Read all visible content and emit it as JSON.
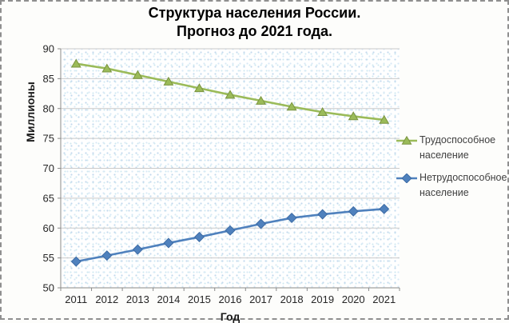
{
  "chart_data": {
    "type": "line",
    "title": "Структура населения России. Прогноз до 2021 года.",
    "title_lines": [
      "Структура населения России.",
      "Прогноз до 2021 года."
    ],
    "xlabel": "Год",
    "ylabel": "Миллионы",
    "categories": [
      "2011",
      "2012",
      "2013",
      "2014",
      "2015",
      "2016",
      "2017",
      "2018",
      "2019",
      "2020",
      "2021"
    ],
    "series": [
      {
        "name": "Трудоспособное население",
        "marker": "triangle",
        "color": "#9BBB59",
        "marker_border": "#7A9440",
        "values": [
          87.5,
          86.7,
          85.6,
          84.5,
          83.4,
          82.3,
          81.3,
          80.3,
          79.4,
          78.7,
          78.1
        ]
      },
      {
        "name": "Нетрудоспособное население",
        "marker": "diamond",
        "color": "#4F81BD",
        "marker_border": "#3C6BA5",
        "values": [
          54.4,
          55.4,
          56.4,
          57.5,
          58.5,
          59.6,
          60.7,
          61.7,
          62.3,
          62.8,
          63.2
        ]
      }
    ],
    "ylim": [
      50,
      90
    ],
    "ytick_step": 5,
    "yticks": [
      50,
      55,
      60,
      65,
      70,
      75,
      80,
      85,
      90
    ],
    "grid": true,
    "legend_position": "right",
    "colors": {
      "gridline": "#c9c9c9",
      "axis": "#8a8a8a",
      "tick_label": "#262626",
      "legend_text": "#404040",
      "title": "#000000"
    }
  }
}
